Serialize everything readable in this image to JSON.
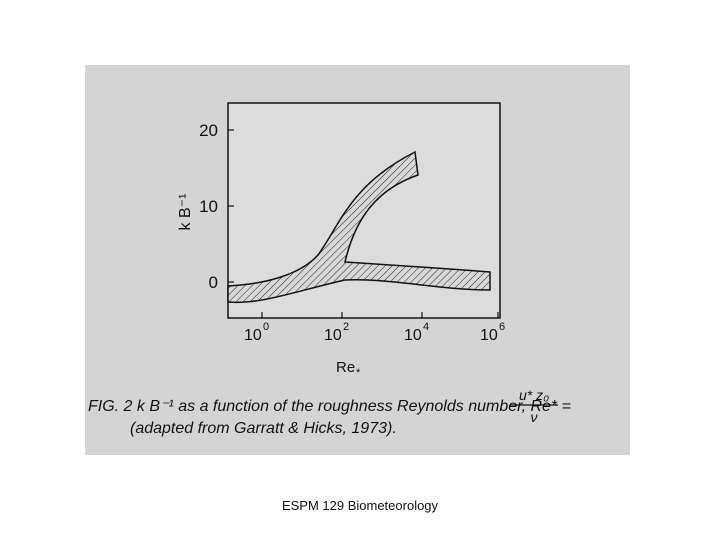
{
  "figure": {
    "y_axis_label": "k B⁻¹",
    "y_ticks": [
      "20",
      "10",
      "0"
    ],
    "x_ticks": [
      {
        "base": "10",
        "exp": "0"
      },
      {
        "base": "10",
        "exp": "2"
      },
      {
        "base": "10",
        "exp": "4"
      },
      {
        "base": "10",
        "exp": "6"
      }
    ],
    "x_axis_label": {
      "base": "Re",
      "sub": "*"
    },
    "caption_line1": "FIG. 2  k B⁻¹ as a function of the roughness Reynolds number, Re* =",
    "formula_numerator": "u* z₀",
    "formula_denominator": "ν",
    "caption_line2": "(adapted from Garratt & Hicks, 1973)."
  },
  "footer": "ESPM 129 Biometeorology"
}
